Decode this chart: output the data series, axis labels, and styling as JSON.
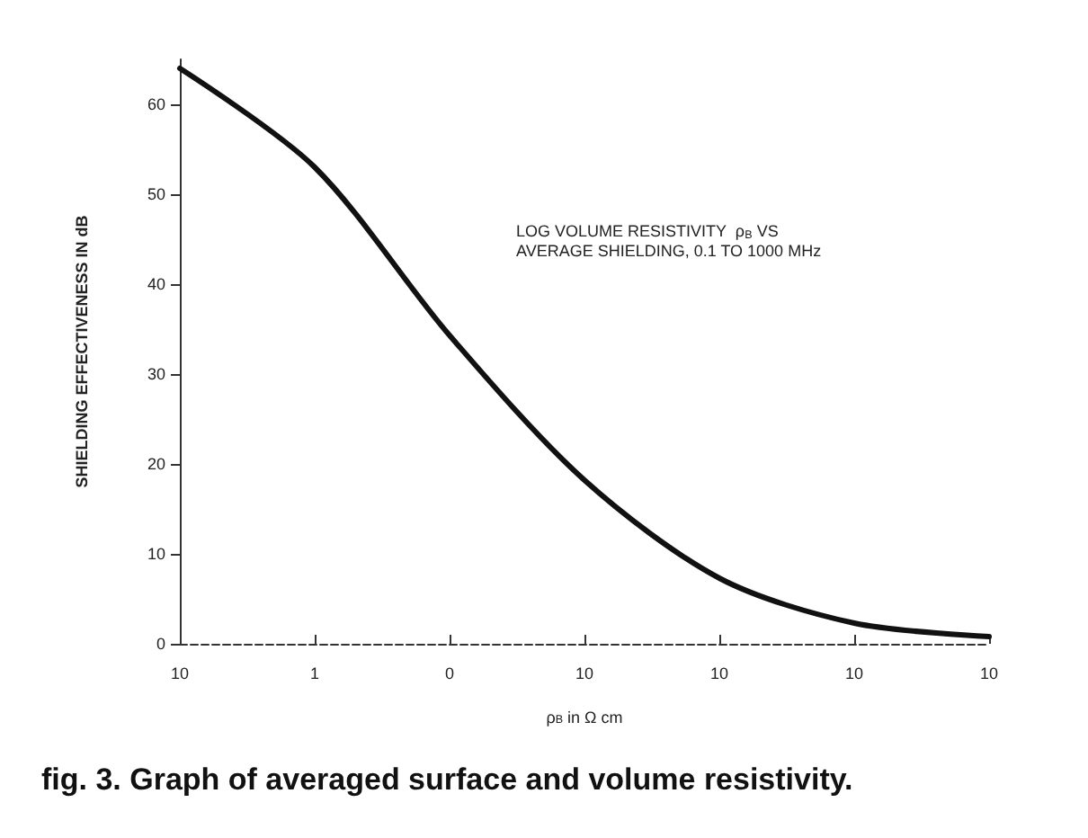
{
  "chart_data": {
    "type": "line",
    "title": "fig. 3. Graph of averaged surface and volume resistivity.",
    "xlabel": "ρ$_{B}$ in Ω cm",
    "ylabel": "SHIELDING EFFECTIVENESS IN dB",
    "annotations": [
      "LOG VOLUME RESISTIVITY  ρ$_{B}$ VS\nAVERAGE SHIELDING, 0.1 TO 1000 MHz"
    ],
    "categories": [
      "10",
      "1",
      "0",
      "10",
      "10",
      "10",
      "10"
    ],
    "series": [
      {
        "color": "#111111",
        "values": [
          64,
          53,
          34.3,
          18.2,
          7.3,
          2.3,
          0.8
        ]
      }
    ],
    "ylim": [
      0,
      65
    ],
    "yticks": [
      0,
      10,
      20,
      30,
      40,
      50,
      60
    ],
    "grid": false,
    "marker": "none",
    "line_style": "solid"
  }
}
